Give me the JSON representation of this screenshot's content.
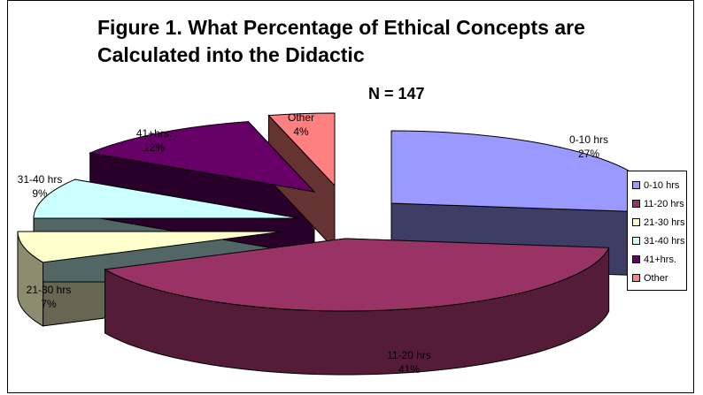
{
  "chart_data": {
    "type": "pie",
    "title": "Figure 1. What Percentage of Ethical Concepts are Calculated into the Didactic",
    "subtitle": "N = 147",
    "categories": [
      "0-10 hrs",
      "11-20 hrs",
      "21-30 hrs",
      "31-40 hrs",
      "41+hrs.",
      "Other"
    ],
    "values": [
      27,
      41,
      7,
      9,
      12,
      4
    ],
    "value_labels": [
      "27%",
      "41%",
      "7%",
      "9%",
      "12%",
      "4%"
    ],
    "colors": [
      "#9999ff",
      "#993366",
      "#ffffcc",
      "#ccffff",
      "#660066",
      "#ff8080"
    ],
    "legend_position": "right",
    "style": "3d-exploded"
  }
}
